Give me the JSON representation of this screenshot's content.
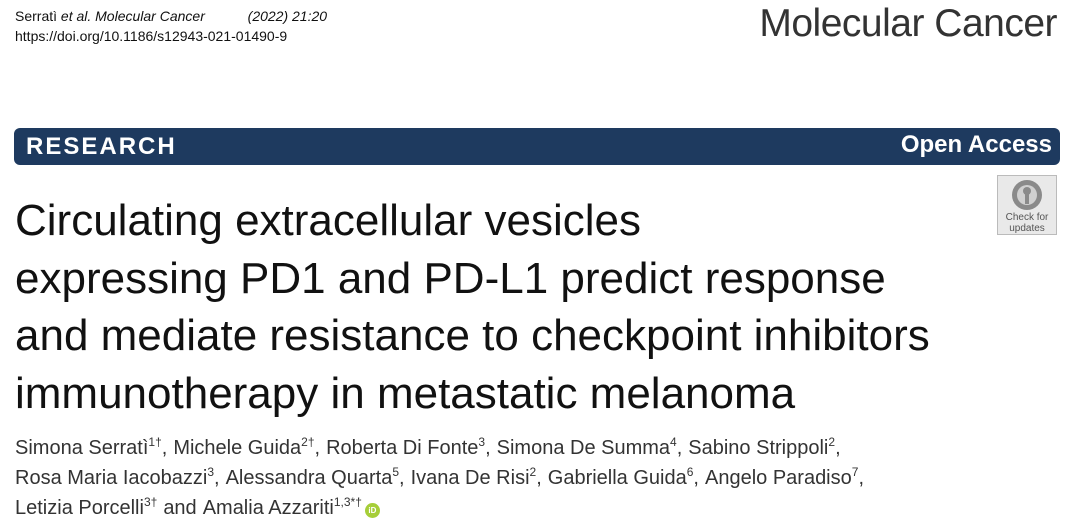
{
  "header": {
    "citation_author": "Serratì",
    "citation_journal": "et al. Molecular Cancer",
    "citation_year": "(2022) 21:20",
    "doi": "https://doi.org/10.1186/s12943-021-01490-9",
    "journal": "Molecular Cancer"
  },
  "banner": {
    "label": "RESEARCH",
    "access": "Open Access"
  },
  "badge": {
    "line1": "Check for",
    "line2": "updates"
  },
  "title_lines": [
    "Circulating extracellular vesicles",
    "expressing PD1 and PD-L1 predict response",
    "and mediate resistance to checkpoint inhibitors",
    "immunotherapy in metastatic melanoma"
  ],
  "author_lines": [
    [
      {
        "name": "Simona Serratì",
        "affiliation": "1†",
        "separator": ","
      },
      {
        "name": "Michele Guida",
        "affiliation": "2†",
        "separator": ","
      },
      {
        "name": "Roberta Di Fonte",
        "affiliation": "3",
        "separator": ","
      },
      {
        "name": "Simona De Summa",
        "affiliation": "4",
        "separator": ","
      },
      {
        "name": "Sabino Strippoli",
        "affiliation": "2",
        "separator": ","
      }
    ],
    [
      {
        "name": "Rosa Maria Iacobazzi",
        "affiliation": "3",
        "separator": ","
      },
      {
        "name": "Alessandra Quarta",
        "affiliation": "5",
        "separator": ","
      },
      {
        "name": "Ivana De Risi",
        "affiliation": "2",
        "separator": ","
      },
      {
        "name": "Gabriella Guida",
        "affiliation": "6",
        "separator": ","
      },
      {
        "name": "Angelo Paradiso",
        "affiliation": "7",
        "separator": ","
      }
    ],
    [
      {
        "name": "Letizia Porcelli",
        "affiliation": "3†",
        "separator": "and"
      },
      {
        "name": "Amalia Azzariti",
        "affiliation": "1,3*†",
        "orcid": "iD"
      }
    ]
  ]
}
